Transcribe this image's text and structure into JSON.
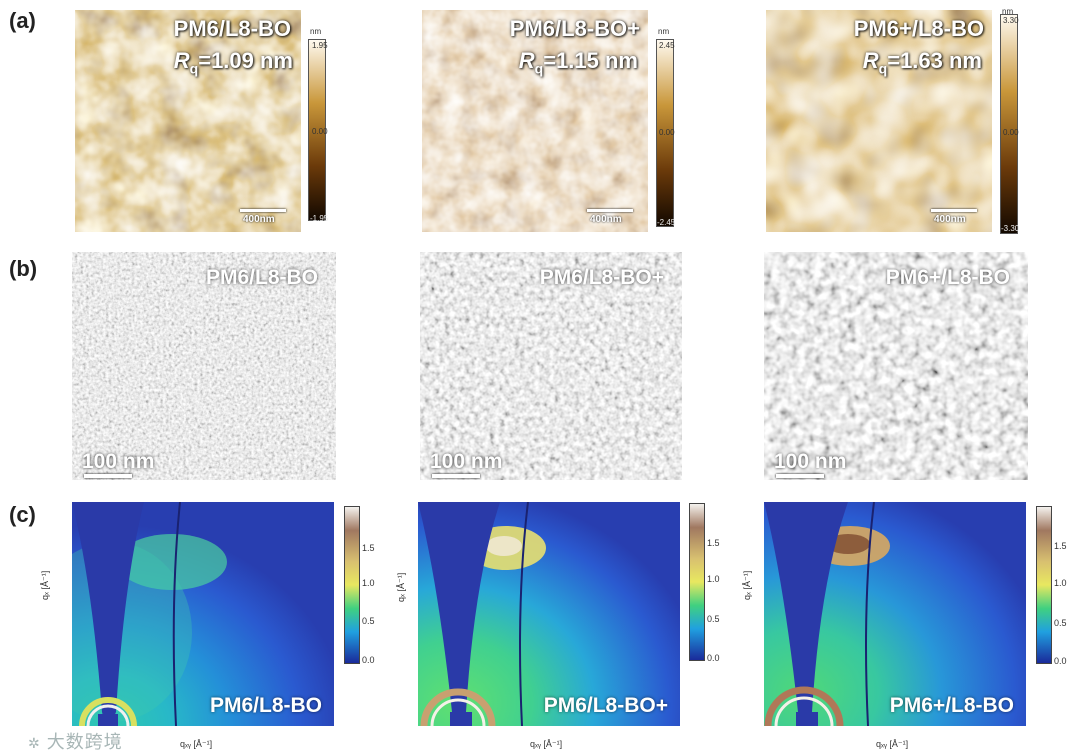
{
  "panel_labels": {
    "a": "(a)",
    "b": "(b)",
    "c": "(c)"
  },
  "afm": [
    {
      "title": "PM6/L8-BO",
      "rq_symbol": "R",
      "rq_sub": "q",
      "rq_value": "=1.09 nm",
      "scale_bar": "400nm",
      "cbar_unit": "nm",
      "cbar_max": "1.95",
      "cbar_mid": "0.00",
      "cbar_min": "-1.95"
    },
    {
      "title": "PM6/L8-BO+",
      "rq_symbol": "R",
      "rq_sub": "q",
      "rq_value": "=1.15 nm",
      "scale_bar": "400nm",
      "cbar_unit": "nm",
      "cbar_max": "2.45",
      "cbar_mid": "0.00",
      "cbar_min": "-2.45"
    },
    {
      "title": "PM6+/L8-BO",
      "rq_symbol": "R",
      "rq_sub": "q",
      "rq_value": "=1.63 nm",
      "scale_bar": "400nm",
      "cbar_unit": "nm",
      "cbar_max": "3.30",
      "cbar_mid": "0.00",
      "cbar_min": "-3.30"
    }
  ],
  "tem": [
    {
      "title": "PM6/L8-BO",
      "scale_bar": "100 nm"
    },
    {
      "title": "PM6/L8-BO+",
      "scale_bar": "100 nm"
    },
    {
      "title": "PM6+/L8-BO",
      "scale_bar": "100 nm"
    }
  ],
  "giwaxs": [
    {
      "title": "PM6/L8-BO",
      "xlabel": "qₓᵧ [Å⁻¹]",
      "ylabel": "qₓ [Å⁻¹]",
      "cbar_ticks": [
        "1.5",
        "1.0",
        "0.5",
        "0.0"
      ]
    },
    {
      "title": "PM6/L8-BO+",
      "xlabel": "qₓᵧ [Å⁻¹]",
      "ylabel": "qₓ [Å⁻¹]",
      "cbar_ticks": [
        "1.5",
        "1.0",
        "0.5",
        "0.0"
      ]
    },
    {
      "title": "PM6+/L8-BO",
      "xlabel": "qₓᵧ [Å⁻¹]",
      "ylabel": "qₓ [Å⁻¹]",
      "cbar_ticks": [
        "1.5",
        "1.0",
        "0.5",
        "0.0"
      ]
    }
  ],
  "watermark": "大数跨境",
  "colors": {
    "afm_dark": "#2a1503",
    "afm_light": "#fff6e0",
    "giwaxs_bg": "#1f3fb0",
    "giwaxs_hot": "#e8dcc8"
  }
}
